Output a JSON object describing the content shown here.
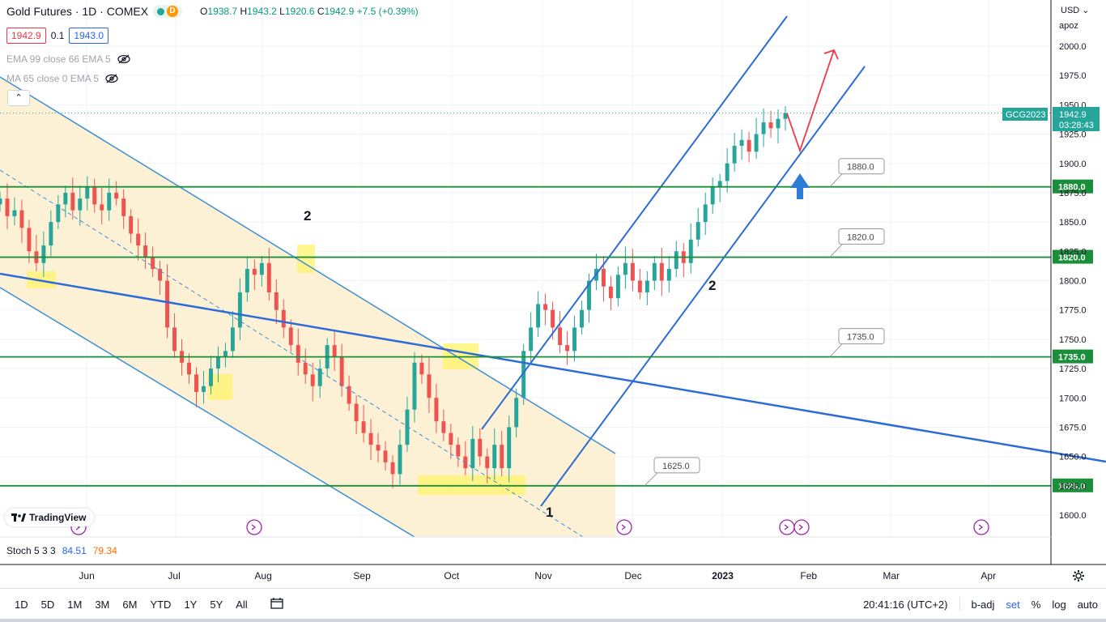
{
  "header": {
    "title": "Gold Futures · 1D · COMEX",
    "badge": "D",
    "ohlc": {
      "o_label": "O",
      "o": "1938.7",
      "h_label": "H",
      "h": "1943.2",
      "l_label": "L",
      "l": "1920.6",
      "c_label": "C",
      "c": "1942.9",
      "change": "+7.5 (+0.39%)"
    },
    "bid": "1942.9",
    "spread": "0.1",
    "ask": "1943.0",
    "indicators": [
      "EMA 99 close 66 EMA 5",
      "MA 65 close 0 EMA 5"
    ]
  },
  "axis": {
    "currency": "USD",
    "mode": "apoz"
  },
  "logo": "TradingView",
  "stoch": {
    "label": "Stoch 5 3 3",
    "k": "84.51",
    "d": "79.34"
  },
  "bottombar": {
    "timeframes": [
      "1D",
      "5D",
      "1M",
      "3M",
      "6M",
      "YTD",
      "1Y",
      "5Y",
      "All"
    ],
    "clock": "20:41:16 (UTC+2)",
    "options": [
      "b-adj",
      "set",
      "%",
      "log",
      "auto"
    ]
  },
  "colors": {
    "up": "#26a69a",
    "down": "#ef5350",
    "channel": "#2979ff",
    "level": "#1b8e3a",
    "zone": "#fdf0d0"
  },
  "chart_data": {
    "type": "candlestick",
    "symbol_label": "GCG2023",
    "last_price": "1942.9",
    "countdown": "03:28:43",
    "y_range": [
      1580,
      2020
    ],
    "y_ticks": [
      "2000.0",
      "1975.0",
      "1950.0",
      "1925.0",
      "1900.0",
      "1875.0",
      "1850.0",
      "1825.0",
      "1800.0",
      "1775.0",
      "1750.0",
      "1725.0",
      "1700.0",
      "1675.0",
      "1650.0",
      "1625.0",
      "1600.0"
    ],
    "x_labels": [
      "Jun",
      "Jul",
      "Aug",
      "Sep",
      "Oct",
      "Nov",
      "Dec",
      "2023",
      "Feb",
      "Mar",
      "Apr"
    ],
    "levels": [
      {
        "price": 1880.0,
        "label": "1880.0"
      },
      {
        "price": 1820.0,
        "label": "1820.0"
      },
      {
        "price": 1735.0,
        "label": "1735.0"
      },
      {
        "price": 1625.0,
        "label": "1625.0"
      }
    ],
    "wave_labels": [
      "2",
      "2",
      "1"
    ],
    "series": [
      {
        "name": "GCG2023",
        "close_path": [
          1870,
          1855,
          1860,
          1845,
          1825,
          1815,
          1830,
          1850,
          1865,
          1875,
          1860,
          1870,
          1880,
          1865,
          1860,
          1875,
          1870,
          1855,
          1840,
          1830,
          1820,
          1810,
          1800,
          1760,
          1740,
          1730,
          1720,
          1705,
          1710,
          1725,
          1735,
          1740,
          1760,
          1790,
          1810,
          1805,
          1815,
          1790,
          1775,
          1760,
          1745,
          1730,
          1720,
          1710,
          1725,
          1745,
          1735,
          1710,
          1695,
          1680,
          1670,
          1660,
          1655,
          1645,
          1635,
          1660,
          1690,
          1730,
          1720,
          1700,
          1680,
          1670,
          1660,
          1650,
          1640,
          1665,
          1650,
          1640,
          1660,
          1640,
          1675,
          1700,
          1740,
          1760,
          1780,
          1775,
          1760,
          1745,
          1740,
          1760,
          1775,
          1800,
          1810,
          1795,
          1785,
          1805,
          1815,
          1800,
          1790,
          1800,
          1815,
          1800,
          1810,
          1825,
          1815,
          1835,
          1850,
          1865,
          1880,
          1885,
          1900,
          1915,
          1920,
          1910,
          1925,
          1935,
          1930,
          1938,
          1942.9
        ]
      }
    ]
  }
}
